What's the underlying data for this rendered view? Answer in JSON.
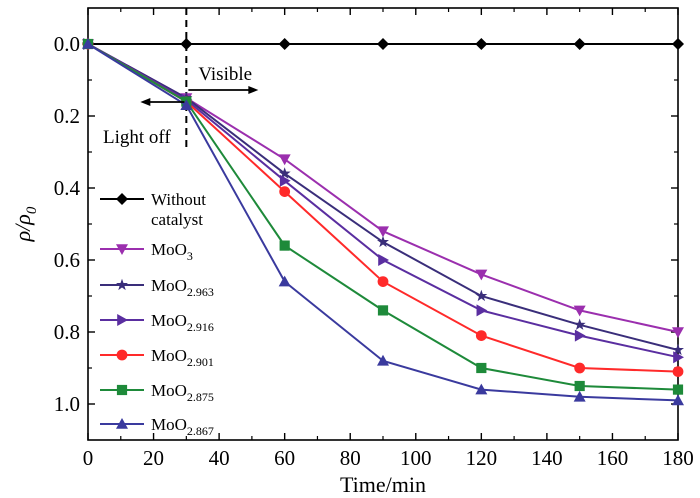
{
  "chart_data": {
    "type": "line",
    "xlabel": "Time/min",
    "ylabel": "ρ/ρ",
    "ylabel_sub": "0",
    "xlim": [
      0,
      180
    ],
    "ylim": [
      1.1,
      -0.1
    ],
    "y_inverted": true,
    "xticks": [
      0,
      20,
      40,
      60,
      80,
      100,
      120,
      140,
      160,
      180
    ],
    "yticks": [
      0.0,
      0.2,
      0.4,
      0.6,
      0.8,
      1.0
    ],
    "ytick_labels": [
      "0.0",
      "0.2",
      "0.4",
      "0.6",
      "0.8",
      "1.0"
    ],
    "grid": false,
    "legend_position": "left",
    "annotations": {
      "visible": "Visible",
      "light_off": "Light off",
      "divider_x": 30
    },
    "x": [
      0,
      30,
      60,
      90,
      120,
      150,
      180
    ],
    "series": [
      {
        "name": "Without",
        "name2": "catalyst",
        "marker": "diamond",
        "color": "#000000",
        "values": [
          0.0,
          0.0,
          0.0,
          0.0,
          0.0,
          0.0,
          0.0
        ]
      },
      {
        "name": "MoO",
        "sub": "3",
        "marker": "triangle-down",
        "color": "#9b2fae",
        "values": [
          0.0,
          0.15,
          0.32,
          0.52,
          0.64,
          0.74,
          0.8
        ]
      },
      {
        "name": "MoO",
        "sub": "2.963",
        "marker": "star",
        "color": "#3a2e7a",
        "values": [
          0.0,
          0.15,
          0.36,
          0.55,
          0.7,
          0.78,
          0.85
        ]
      },
      {
        "name": "MoO",
        "sub": "2.916",
        "marker": "triangle-right",
        "color": "#5a2ea0",
        "values": [
          0.0,
          0.155,
          0.38,
          0.6,
          0.74,
          0.81,
          0.87
        ]
      },
      {
        "name": "MoO",
        "sub": "2.901",
        "marker": "circle",
        "color": "#ff2a2a",
        "values": [
          0.0,
          0.16,
          0.41,
          0.66,
          0.81,
          0.9,
          0.91
        ]
      },
      {
        "name": "MoO",
        "sub": "2.875",
        "marker": "square",
        "color": "#1e8a3a",
        "values": [
          0.0,
          0.16,
          0.56,
          0.74,
          0.9,
          0.95,
          0.96
        ]
      },
      {
        "name": "MoO",
        "sub": "2.867",
        "marker": "triangle-up",
        "color": "#3a3a9e",
        "values": [
          0.0,
          0.17,
          0.66,
          0.88,
          0.96,
          0.98,
          0.99
        ]
      }
    ]
  }
}
